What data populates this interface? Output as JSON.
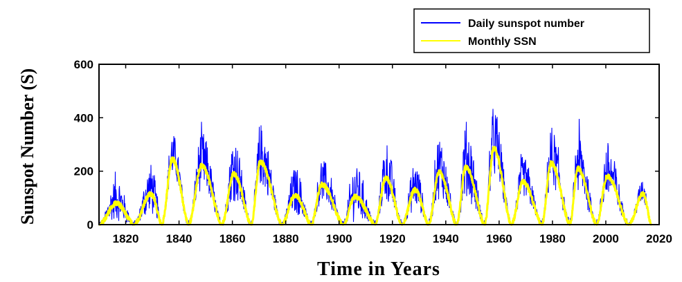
{
  "chart_data": {
    "type": "line",
    "xlabel": "Time in Years",
    "ylabel": "Sunspot Number (S)",
    "xlim": [
      1810,
      2020
    ],
    "ylim": [
      0,
      600
    ],
    "xticks": [
      1820,
      1840,
      1860,
      1880,
      1900,
      1920,
      1940,
      1960,
      1980,
      2000,
      2020
    ],
    "yticks": [
      0,
      200,
      400,
      600
    ],
    "grid": false,
    "legend_position": "top-right, above plot",
    "series": [
      {
        "name": "Daily sunspot number",
        "color": "#0000ff",
        "style": "dense-noisy"
      },
      {
        "name": "Monthly SSN",
        "color": "#ffff00",
        "style": "smooth"
      }
    ],
    "cycles": [
      {
        "start": 1810.0,
        "peak": 1816.5,
        "end": 1823.0,
        "monthly_peak": 80,
        "daily_peak": 200
      },
      {
        "start": 1823.0,
        "peak": 1829.5,
        "end": 1833.5,
        "monthly_peak": 115,
        "daily_peak": 255
      },
      {
        "start": 1833.5,
        "peak": 1837.5,
        "end": 1843.5,
        "monthly_peak": 245,
        "daily_peak": 370
      },
      {
        "start": 1843.5,
        "peak": 1848.5,
        "end": 1856.0,
        "monthly_peak": 220,
        "daily_peak": 385
      },
      {
        "start": 1856.0,
        "peak": 1860.5,
        "end": 1867.0,
        "monthly_peak": 190,
        "daily_peak": 370
      },
      {
        "start": 1867.0,
        "peak": 1870.5,
        "end": 1878.5,
        "monthly_peak": 235,
        "daily_peak": 420
      },
      {
        "start": 1878.5,
        "peak": 1883.5,
        "end": 1889.5,
        "monthly_peak": 110,
        "daily_peak": 245
      },
      {
        "start": 1889.5,
        "peak": 1893.5,
        "end": 1901.5,
        "monthly_peak": 150,
        "daily_peak": 270
      },
      {
        "start": 1901.5,
        "peak": 1906.0,
        "end": 1913.5,
        "monthly_peak": 105,
        "daily_peak": 265
      },
      {
        "start": 1913.5,
        "peak": 1917.5,
        "end": 1923.5,
        "monthly_peak": 175,
        "daily_peak": 350
      },
      {
        "start": 1923.5,
        "peak": 1928.5,
        "end": 1933.5,
        "monthly_peak": 130,
        "daily_peak": 260
      },
      {
        "start": 1933.5,
        "peak": 1937.5,
        "end": 1944.0,
        "monthly_peak": 195,
        "daily_peak": 370
      },
      {
        "start": 1944.0,
        "peak": 1947.5,
        "end": 1954.5,
        "monthly_peak": 215,
        "daily_peak": 430
      },
      {
        "start": 1954.5,
        "peak": 1958.0,
        "end": 1964.5,
        "monthly_peak": 285,
        "daily_peak": 485
      },
      {
        "start": 1964.5,
        "peak": 1969.0,
        "end": 1976.0,
        "monthly_peak": 160,
        "daily_peak": 285
      },
      {
        "start": 1976.0,
        "peak": 1979.5,
        "end": 1986.5,
        "monthly_peak": 230,
        "daily_peak": 400
      },
      {
        "start": 1986.5,
        "peak": 1989.5,
        "end": 1996.5,
        "monthly_peak": 210,
        "daily_peak": 400
      },
      {
        "start": 1996.5,
        "peak": 2000.5,
        "end": 2008.5,
        "monthly_peak": 180,
        "daily_peak": 350
      },
      {
        "start": 2008.5,
        "peak": 2014.0,
        "end": 2017.0,
        "monthly_peak": 115,
        "daily_peak": 185
      }
    ],
    "data_end": 2017.0
  }
}
